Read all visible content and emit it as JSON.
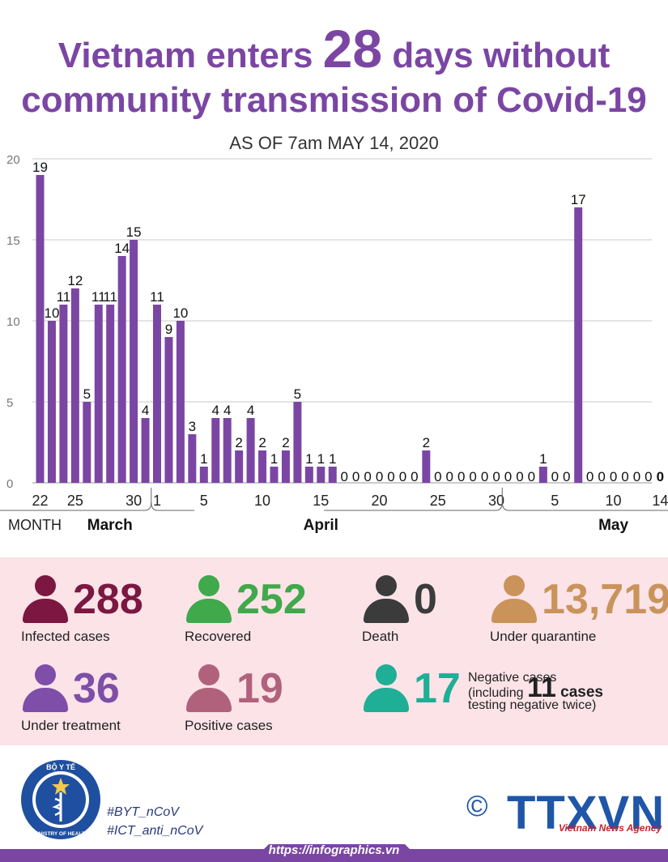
{
  "header": {
    "title_prefix": "Vietnam enters ",
    "title_number": "28",
    "title_suffix": " days without",
    "title_line2": "community transmission of Covid-19",
    "subtitle": "AS OF 7am MAY 14, 2020"
  },
  "chart_data": {
    "type": "bar",
    "x": [
      "Mar 22",
      "Mar 23",
      "Mar 24",
      "Mar 25",
      "Mar 26",
      "Mar 27",
      "Mar 28",
      "Mar 29",
      "Mar 30",
      "Mar 31",
      "Apr 1",
      "Apr 2",
      "Apr 3",
      "Apr 4",
      "Apr 5",
      "Apr 6",
      "Apr 7",
      "Apr 8",
      "Apr 9",
      "Apr 10",
      "Apr 11",
      "Apr 12",
      "Apr 13",
      "Apr 14",
      "Apr 15",
      "Apr 16",
      "Apr 17",
      "Apr 18",
      "Apr 19",
      "Apr 20",
      "Apr 21",
      "Apr 22",
      "Apr 23",
      "Apr 24",
      "Apr 25",
      "Apr 26",
      "Apr 27",
      "Apr 28",
      "Apr 29",
      "Apr 30",
      "May 1",
      "May 2",
      "May 3",
      "May 4",
      "May 5",
      "May 6",
      "May 7",
      "May 8",
      "May 9",
      "May 10",
      "May 11",
      "May 12",
      "May 13",
      "May 14"
    ],
    "values": [
      19,
      10,
      11,
      12,
      5,
      11,
      11,
      14,
      15,
      4,
      11,
      9,
      10,
      3,
      1,
      4,
      4,
      2,
      4,
      2,
      1,
      2,
      5,
      1,
      1,
      1,
      0,
      0,
      0,
      0,
      0,
      0,
      0,
      2,
      0,
      0,
      0,
      0,
      0,
      0,
      0,
      0,
      0,
      1,
      0,
      0,
      17,
      0,
      0,
      0,
      0,
      0,
      0,
      0
    ],
    "ylim": [
      0,
      20
    ],
    "yticks": [
      "0",
      "5",
      "10",
      "15",
      "20"
    ],
    "xticks": [
      {
        "index": 0,
        "label": "22"
      },
      {
        "index": 3,
        "label": "25"
      },
      {
        "index": 8,
        "label": "30"
      },
      {
        "index": 10,
        "label": "1"
      },
      {
        "index": 14,
        "label": "5"
      },
      {
        "index": 19,
        "label": "10"
      },
      {
        "index": 24,
        "label": "15"
      },
      {
        "index": 29,
        "label": "20"
      },
      {
        "index": 34,
        "label": "25"
      },
      {
        "index": 39,
        "label": "30"
      },
      {
        "index": 44,
        "label": "5"
      },
      {
        "index": 49,
        "label": "10"
      },
      {
        "index": 53,
        "label": "14"
      }
    ],
    "month_caption": "MONTH",
    "months": [
      {
        "name": "March",
        "index": 5
      },
      {
        "name": "April",
        "index": 24
      },
      {
        "name": "May",
        "index": 49
      }
    ],
    "bar_color": "#7b46a3",
    "grid": true
  },
  "stats": {
    "infected": {
      "value": "288",
      "label": "Infected cases",
      "color": "#7b1741"
    },
    "recovered": {
      "value": "252",
      "label": "Recovered",
      "color": "#3fa94b"
    },
    "death": {
      "value": "0",
      "label": "Death",
      "color": "#3b3b3b"
    },
    "quarantine": {
      "value": "13,719",
      "label": "Under quarantine",
      "color": "#c9935a"
    },
    "treatment": {
      "value": "36",
      "label": "Under treatment",
      "color": "#7e4ea8"
    },
    "positive": {
      "value": "19",
      "label": "Positive cases",
      "color": "#b0627c"
    },
    "negative": {
      "value": "17",
      "color": "#1fae96",
      "line1": "Negative cases",
      "line2_prefix": "(including ",
      "line2_number": "11",
      "line2_suffix": " cases",
      "line3": "testing negative twice)"
    }
  },
  "footer": {
    "hashtag1": "#BYT_nCoV",
    "hashtag2": "#ICT_anti_nCoV",
    "seal_top": "BỘ Y TẾ",
    "seal_bottom": "MINISTRY OF HEALTH",
    "copyright": "©",
    "agency_logo": "TTXVN",
    "agency_name": "Vietnam News Agency",
    "url": "https://infographics.vn",
    "bar_color": "#7b46a3"
  }
}
